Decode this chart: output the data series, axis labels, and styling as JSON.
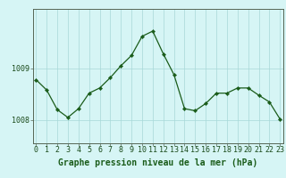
{
  "x": [
    0,
    1,
    2,
    3,
    4,
    5,
    6,
    7,
    8,
    9,
    10,
    11,
    12,
    13,
    14,
    15,
    16,
    17,
    18,
    19,
    20,
    21,
    22,
    23
  ],
  "y": [
    1008.78,
    1008.58,
    1008.2,
    1008.05,
    1008.22,
    1008.52,
    1008.62,
    1008.82,
    1009.05,
    1009.25,
    1009.62,
    1009.72,
    1009.28,
    1008.88,
    1008.22,
    1008.18,
    1008.32,
    1008.52,
    1008.52,
    1008.62,
    1008.62,
    1008.48,
    1008.35,
    1008.02
  ],
  "line_color": "#1a5c1a",
  "marker_color": "#1a5c1a",
  "bg_color": "#d6f5f5",
  "grid_color": "#a8d8d8",
  "xlabel": "Graphe pression niveau de la mer (hPa)",
  "ylabel_ticks": [
    1008,
    1009
  ],
  "ylim": [
    1007.55,
    1010.15
  ],
  "xlim": [
    -0.3,
    23.3
  ],
  "xticks": [
    0,
    1,
    2,
    3,
    4,
    5,
    6,
    7,
    8,
    9,
    10,
    11,
    12,
    13,
    14,
    15,
    16,
    17,
    18,
    19,
    20,
    21,
    22,
    23
  ],
  "xlabel_fontsize": 7.0,
  "tick_fontsize": 6.0
}
